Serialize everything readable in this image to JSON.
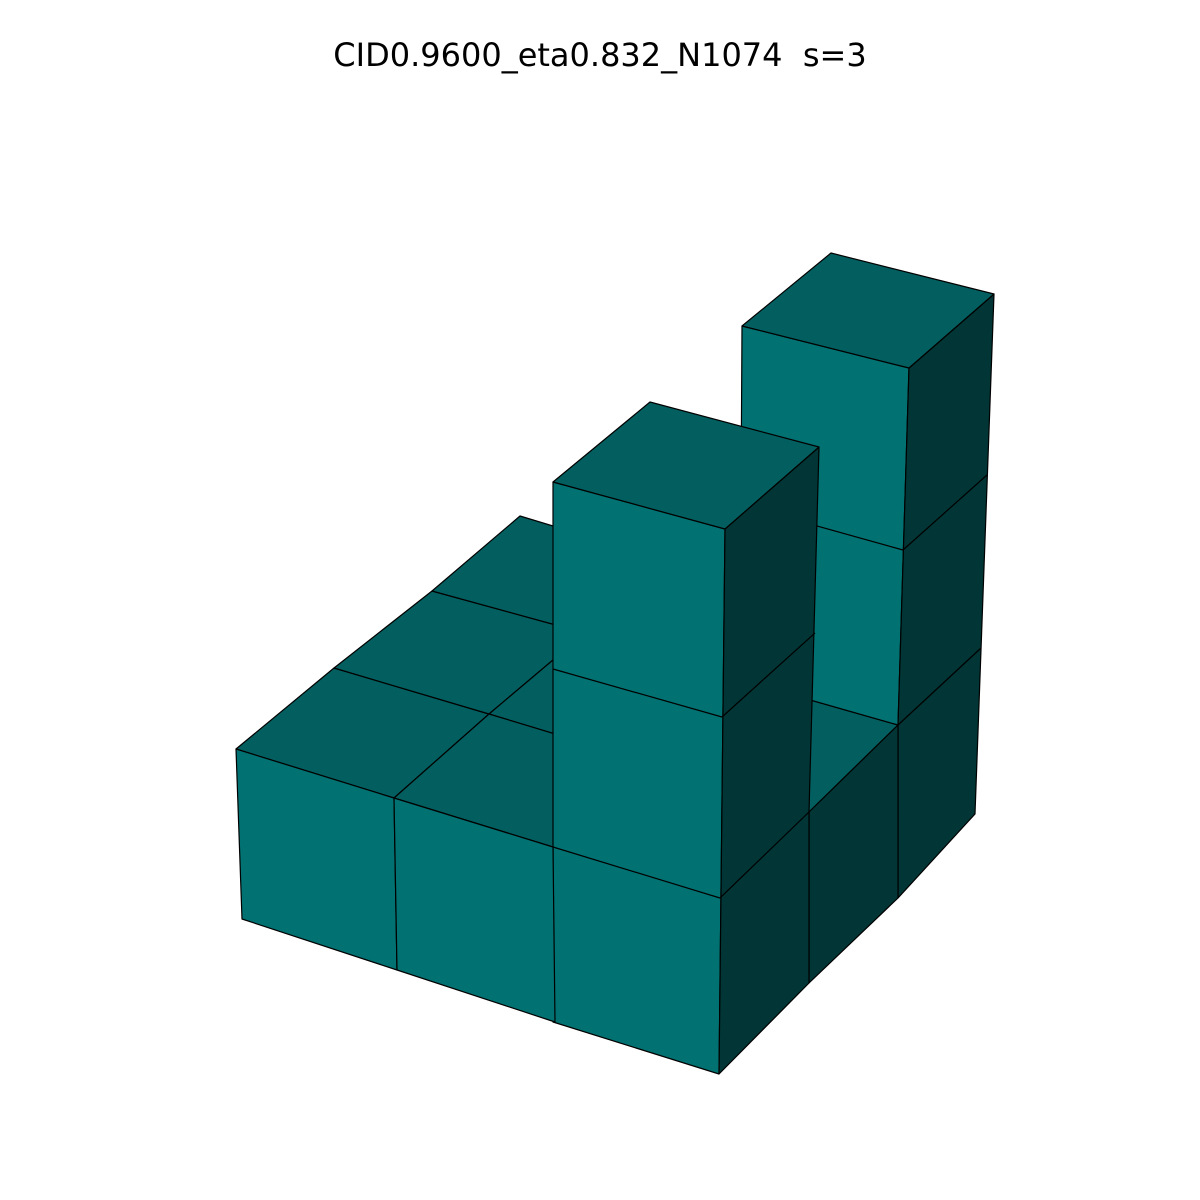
{
  "title": "CID0.9600_eta0.832_N1074  s=3",
  "colors": {
    "background": "#ffffff",
    "top_face": "#035f5f",
    "front_face": "#017171",
    "right_face": "#023535",
    "edge": "#000000"
  }
}
